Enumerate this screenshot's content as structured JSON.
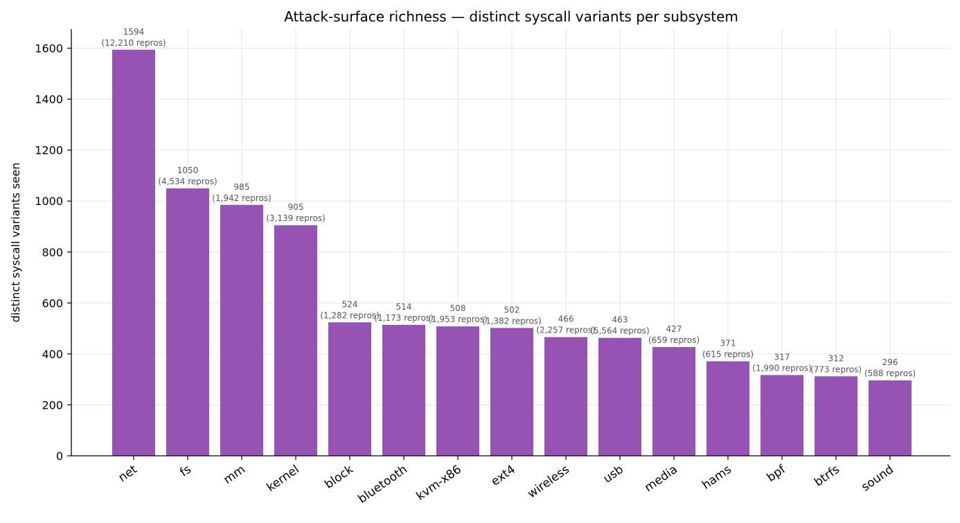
{
  "chart_data": {
    "type": "bar",
    "title": "Attack-surface richness — distinct syscall variants per subsystem",
    "xlabel": "",
    "ylabel": "distinct syscall variants seen",
    "ylim": [
      0,
      1675
    ],
    "yticks": [
      0,
      200,
      400,
      600,
      800,
      1000,
      1200,
      1400,
      1600
    ],
    "grid": true,
    "bar_color": "#8e44ad",
    "categories": [
      "net",
      "fs",
      "mm",
      "kernel",
      "block",
      "bluetooth",
      "kvm-x86",
      "ext4",
      "wireless",
      "usb",
      "media",
      "hams",
      "bpf",
      "btrfs",
      "sound"
    ],
    "values": [
      1594,
      1050,
      985,
      905,
      524,
      514,
      508,
      502,
      466,
      463,
      427,
      371,
      317,
      312,
      296
    ],
    "value_labels": [
      "1594",
      "1050",
      "985",
      "905",
      "524",
      "514",
      "508",
      "502",
      "466",
      "463",
      "427",
      "371",
      "317",
      "312",
      "296"
    ],
    "repro_labels": [
      "(12,210 repros)",
      "(4,534 repros)",
      "(1,942 repros)",
      "(3,139 repros)",
      "(1,282 repros)",
      "(1,173 repros)",
      "(1,953 repros)",
      "(1,382 repros)",
      "(2,257 repros)",
      "(5,564 repros)",
      "(659 repros)",
      "(615 repros)",
      "(1,990 repros)",
      "(773 repros)",
      "(588 repros)"
    ]
  }
}
